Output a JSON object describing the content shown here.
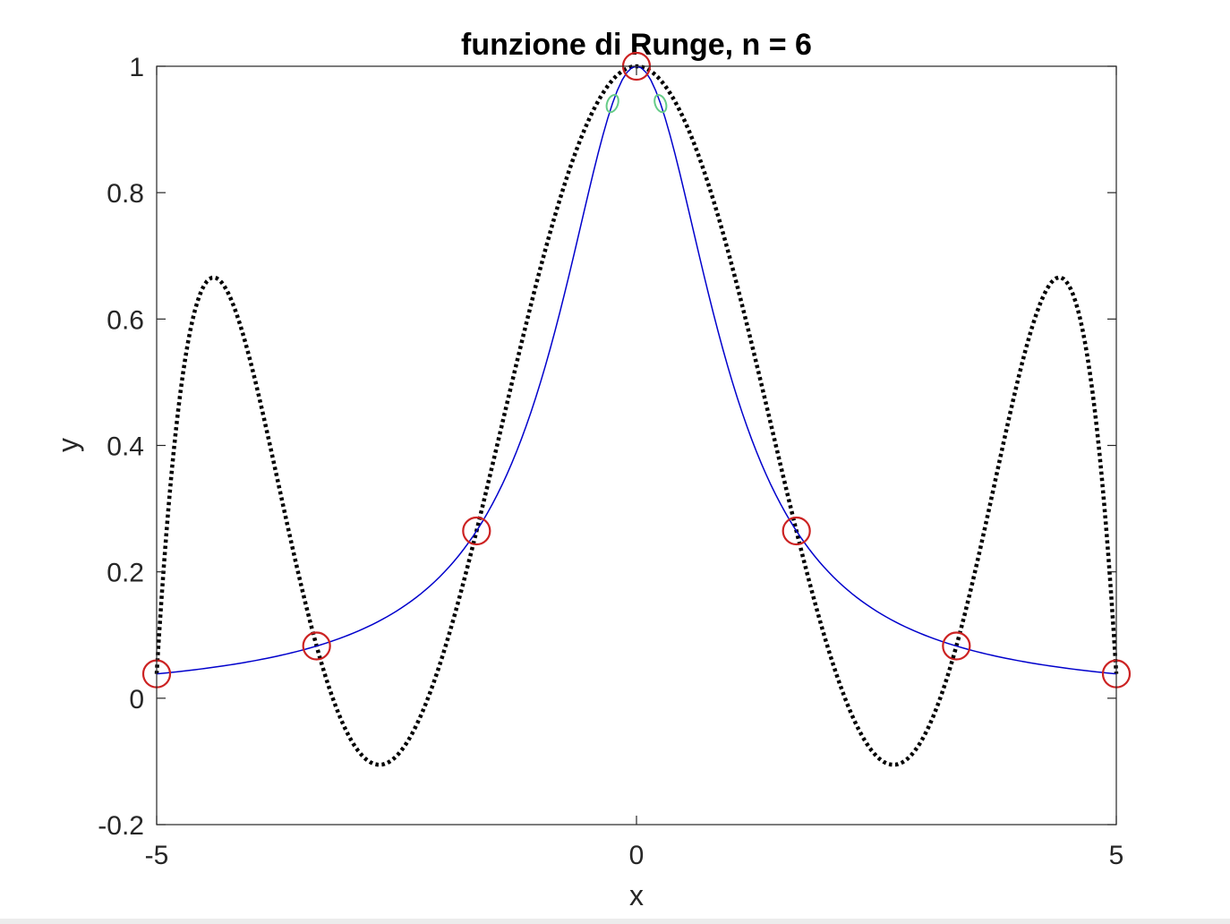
{
  "chart_data": {
    "type": "line",
    "title": "funzione di Runge, n = 6",
    "xlabel": "x",
    "ylabel": "y",
    "xlim": [
      -5,
      5
    ],
    "ylim": [
      -0.2,
      1
    ],
    "xticks": [
      -5,
      0,
      5
    ],
    "xtick_labels": [
      "-5",
      "0",
      "5"
    ],
    "yticks": [
      -0.2,
      0,
      0.2,
      0.4,
      0.6,
      0.8,
      1
    ],
    "ytick_labels": [
      "-0.2",
      "0",
      "0.2",
      "0.4",
      "0.6",
      "0.8",
      "1"
    ],
    "grid": false,
    "box": true,
    "series": [
      {
        "style": "solid",
        "color": "#0000cc",
        "function": "1/(1+x^2)",
        "domain": [
          -5,
          5
        ],
        "samples": 201
      },
      {
        "style": "dotted",
        "color": "#000000",
        "function": "degree-6 interpolating polynomial of 1/(1+x^2) at the nodes",
        "domain": [
          -5,
          5
        ],
        "samples": 401
      },
      {
        "style": "circle-markers",
        "color": "#cc2222",
        "x": [
          -5,
          -3.3333,
          -1.6667,
          0,
          1.6667,
          3.3333,
          5
        ],
        "y": [
          0.0385,
          0.0826,
          0.2647,
          1,
          0.2647,
          0.0826,
          0.0385
        ]
      },
      {
        "style": "circle-markers",
        "color": "#66cc88",
        "x": [
          -0.25,
          0.25
        ],
        "y": [
          0.941,
          0.941
        ]
      }
    ]
  }
}
